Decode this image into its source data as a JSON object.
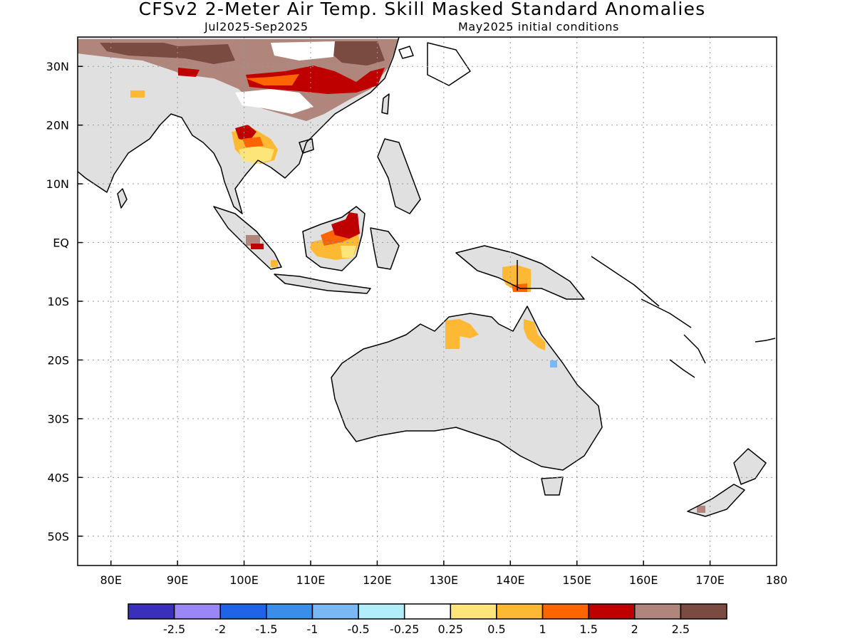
{
  "title": "CFSv2 2-Meter Air Temp. Skill Masked Standard Anomalies",
  "subtitle_left": "Jul2025-Sep2025",
  "subtitle_right": "May2025 initial conditions",
  "map": {
    "lon_range": [
      75,
      180
    ],
    "lat_range": [
      -55,
      35
    ],
    "lat_labels": [
      {
        "lat": 30,
        "label": "30N"
      },
      {
        "lat": 20,
        "label": "20N"
      },
      {
        "lat": 10,
        "label": "10N"
      },
      {
        "lat": 0,
        "label": "EQ"
      },
      {
        "lat": -10,
        "label": "10S"
      },
      {
        "lat": -20,
        "label": "20S"
      },
      {
        "lat": -30,
        "label": "30S"
      },
      {
        "lat": -40,
        "label": "40S"
      },
      {
        "lat": -50,
        "label": "50S"
      }
    ],
    "lon_labels": [
      {
        "lon": 80,
        "label": "80E"
      },
      {
        "lon": 90,
        "label": "90E"
      },
      {
        "lon": 100,
        "label": "100E"
      },
      {
        "lon": 110,
        "label": "110E"
      },
      {
        "lon": 120,
        "label": "120E"
      },
      {
        "lon": 130,
        "label": "130E"
      },
      {
        "lon": 140,
        "label": "140E"
      },
      {
        "lon": 150,
        "label": "150E"
      },
      {
        "lon": 160,
        "label": "160E"
      },
      {
        "lon": 170,
        "label": "170E"
      },
      {
        "lon": 180,
        "label": "180"
      }
    ],
    "grid": "dotted",
    "masked_land_color": "#e0e0e0"
  },
  "colorbar": {
    "colors": [
      "#3a2ebd",
      "#9a87f5",
      "#1f64e6",
      "#3a8de8",
      "#79b7f5",
      "#b1eefa",
      "#ffffff",
      "#fee57a",
      "#fdb934",
      "#fd6402",
      "#bf0000",
      "#b0857b",
      "#7a4b40"
    ],
    "labels": [
      "-2.5",
      "-2",
      "-1.5",
      "-1",
      "-0.5",
      "-0.25",
      "0.25",
      "0.5",
      "1",
      "1.5",
      "2",
      "2.5"
    ]
  }
}
